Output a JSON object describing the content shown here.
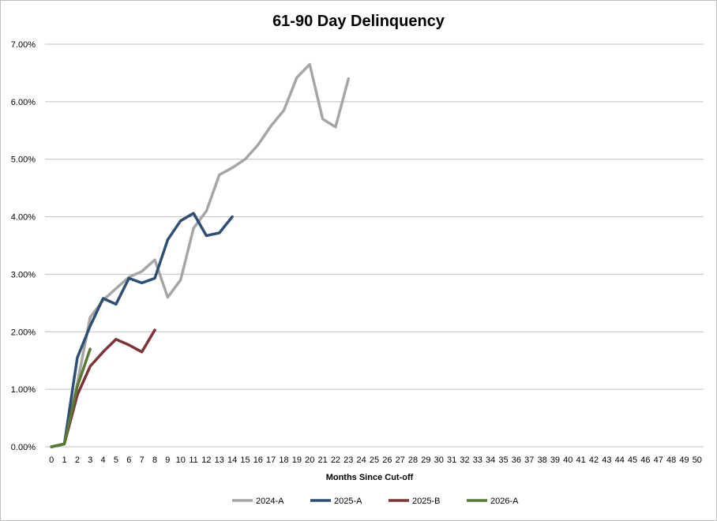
{
  "chart_data": {
    "type": "line",
    "title": "61-90 Day Delinquency",
    "xlabel": "Months Since Cut-off",
    "ylabel": "",
    "x_categories": [
      0,
      1,
      2,
      3,
      4,
      5,
      6,
      7,
      8,
      9,
      10,
      11,
      12,
      13,
      14,
      15,
      16,
      17,
      18,
      19,
      20,
      21,
      22,
      23,
      24,
      25,
      26,
      27,
      28,
      29,
      30,
      31,
      32,
      33,
      34,
      35,
      36,
      37,
      38,
      39,
      40,
      41,
      42,
      43,
      44,
      45,
      46,
      47,
      48,
      49,
      50
    ],
    "y_ticks": [
      "0.00%",
      "1.00%",
      "2.00%",
      "3.00%",
      "4.00%",
      "5.00%",
      "6.00%",
      "7.00%"
    ],
    "ylim": [
      0,
      7
    ],
    "y_unit": "%",
    "grid": "horizontal",
    "legend_position": "bottom",
    "series": [
      {
        "name": "2024-A",
        "color": "#a6a6a6",
        "x": [
          0,
          1,
          2,
          3,
          4,
          5,
          6,
          7,
          8,
          9,
          10,
          11,
          12,
          13,
          14,
          15,
          16,
          17,
          18,
          19,
          20,
          21,
          22,
          23
        ],
        "values": [
          0.0,
          0.05,
          1.1,
          2.25,
          2.55,
          2.75,
          2.95,
          3.05,
          3.25,
          2.6,
          2.9,
          3.8,
          4.1,
          4.73,
          4.85,
          5.0,
          5.25,
          5.58,
          5.85,
          6.42,
          6.65,
          5.7,
          5.56,
          6.4
        ]
      },
      {
        "name": "2025-A",
        "color": "#2e4f73",
        "x": [
          0,
          1,
          2,
          3,
          4,
          5,
          6,
          7,
          8,
          9,
          10,
          11,
          12,
          13,
          14
        ],
        "values": [
          0.0,
          0.05,
          1.55,
          2.1,
          2.58,
          2.48,
          2.93,
          2.85,
          2.93,
          3.6,
          3.93,
          4.06,
          3.67,
          3.72,
          4.0
        ]
      },
      {
        "name": "2025-B",
        "color": "#7f3336",
        "x": [
          0,
          1,
          2,
          3,
          4,
          5,
          6,
          7,
          8
        ],
        "values": [
          0.0,
          0.05,
          0.9,
          1.4,
          1.65,
          1.87,
          1.77,
          1.65,
          2.03
        ]
      },
      {
        "name": "2026-A",
        "color": "#5a7a34",
        "x": [
          0,
          1,
          2,
          3
        ],
        "values": [
          0.0,
          0.05,
          1.05,
          1.7
        ]
      }
    ]
  },
  "colors": {
    "gridline": "#c0c0c0",
    "axis": "#bfbfbf",
    "frame": "#bfbfbf"
  }
}
